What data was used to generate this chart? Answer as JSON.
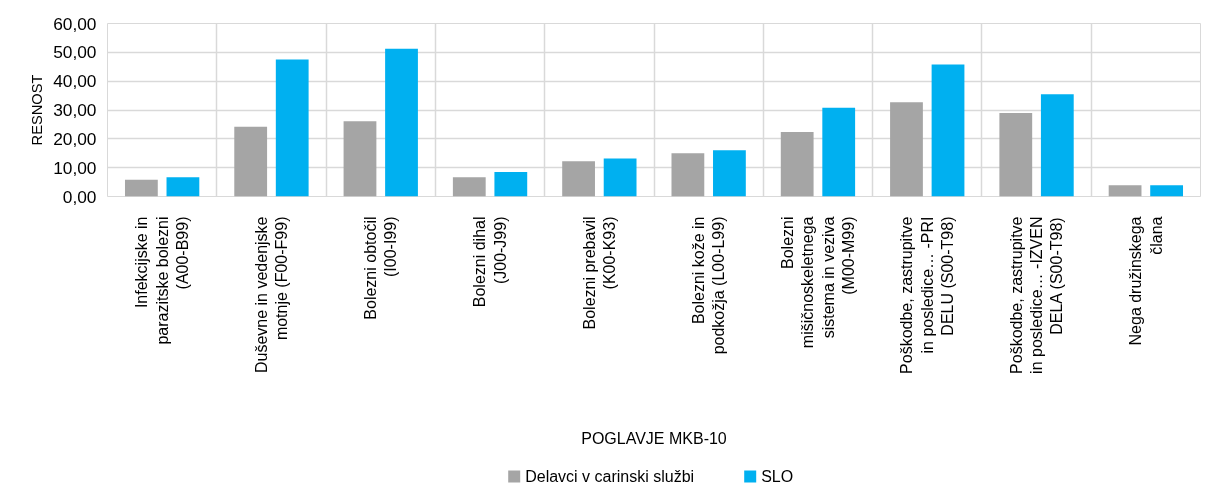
{
  "chart_data": {
    "type": "bar",
    "xlabel": "POGLAVJE MKB-10",
    "ylabel": "RESNOST",
    "categories": [
      "Infekcijske in parazitske bolezni (A00-B99)",
      "Duševne in vedenjske motnje (F00-F99)",
      "Bolezni obtočil (I00-I99)",
      "Bolezni dihal (J00-J99)",
      "Bolezni prebavil (K00-K93)",
      "Bolezni kože in podkožja (L00-L99)",
      "Bolezni mišičnoskeletnega sistema in veziva (M00-M99)",
      "Poškodbe, zastrupitve in posledice… -PRI DELU (S00-T98)",
      "Poškodbe, zastrupitve in posledice… -IZVEN DELA (S00-T98)",
      "Nega družinskega člana"
    ],
    "series": [
      {
        "name": "Delavci v carinski službi",
        "color": "#a5a5a5",
        "values": [
          5.8,
          24.2,
          26.1,
          6.7,
          12.2,
          15.0,
          22.4,
          32.7,
          29.0,
          3.9
        ]
      },
      {
        "name": "SLO",
        "color": "#00b0f0",
        "values": [
          6.7,
          47.5,
          51.2,
          8.5,
          13.2,
          16.0,
          30.8,
          45.8,
          35.5,
          3.9
        ]
      }
    ],
    "ylim": [
      0,
      60
    ],
    "yticks": [
      {
        "value": 0,
        "label": "0,00"
      },
      {
        "value": 10,
        "label": "10,00"
      },
      {
        "value": 20,
        "label": "20,00"
      },
      {
        "value": 30,
        "label": "30,00"
      },
      {
        "value": 40,
        "label": "40,00"
      },
      {
        "value": 50,
        "label": "50,00"
      },
      {
        "value": 60,
        "label": "60,00"
      }
    ],
    "grid": true,
    "legend": "bottom"
  }
}
